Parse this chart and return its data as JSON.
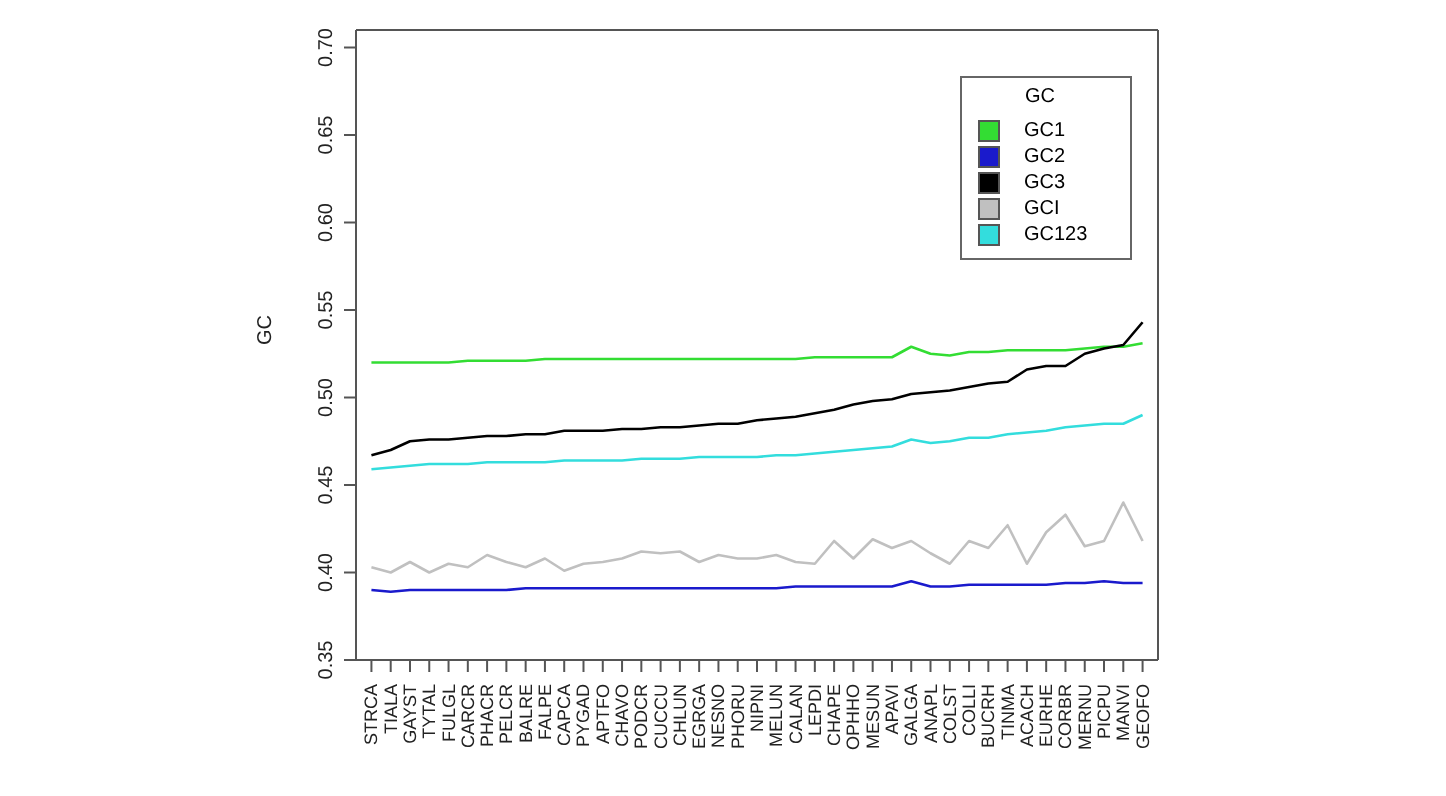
{
  "chart_data": {
    "type": "line",
    "ylabel": "GC",
    "legend_title": "GC",
    "legend": "top right",
    "grid": false,
    "marker": "none",
    "line_style": "solid",
    "categories": [
      "STRCA",
      "TIALA",
      "GAYST",
      "TYTAL",
      "FULGL",
      "CARCR",
      "PHACR",
      "PELCR",
      "BALRE",
      "FALPE",
      "CAPCA",
      "PYGAD",
      "APTFO",
      "CHAVO",
      "PODCR",
      "CUCCU",
      "CHLUN",
      "EGRGA",
      "NESNO",
      "PHORU",
      "NIPNI",
      "MELUN",
      "CALAN",
      "LEPDI",
      "CHAPE",
      "OPHHO",
      "MESUN",
      "APAVI",
      "GALGA",
      "ANAPL",
      "COLST",
      "COLLI",
      "BUCRH",
      "TINMA",
      "ACACH",
      "EURHE",
      "CORBR",
      "MERNU",
      "PICPU",
      "MANVI",
      "GEOFO"
    ],
    "ylim": [
      0.35,
      0.71
    ],
    "yticks": [
      0.35,
      {
        "value": 0.4,
        "label": "0.40"
      },
      0.45,
      {
        "value": 0.5,
        "label": "0.50"
      },
      0.55,
      {
        "value": 0.6,
        "label": "0.60"
      },
      0.65,
      {
        "value": 0.7,
        "label": "0.70"
      }
    ],
    "series": [
      {
        "name": "GC1",
        "color": "#33dd33",
        "values": [
          0.52,
          0.52,
          0.52,
          0.52,
          0.52,
          0.521,
          0.521,
          0.521,
          0.521,
          0.522,
          0.522,
          0.522,
          0.522,
          0.522,
          0.522,
          0.522,
          0.522,
          0.522,
          0.522,
          0.522,
          0.522,
          0.522,
          0.522,
          0.523,
          0.523,
          0.523,
          0.523,
          0.523,
          0.529,
          0.525,
          0.524,
          0.526,
          0.526,
          0.527,
          0.527,
          0.527,
          0.527,
          0.528,
          0.529,
          0.529,
          0.531
        ]
      },
      {
        "name": "GC2",
        "color": "#1a1acc",
        "values": [
          0.39,
          0.389,
          0.39,
          0.39,
          0.39,
          0.39,
          0.39,
          0.39,
          0.391,
          0.391,
          0.391,
          0.391,
          0.391,
          0.391,
          0.391,
          0.391,
          0.391,
          0.391,
          0.391,
          0.391,
          0.391,
          0.391,
          0.392,
          0.392,
          0.392,
          0.392,
          0.392,
          0.392,
          0.395,
          0.392,
          0.392,
          0.393,
          0.393,
          0.393,
          0.393,
          0.393,
          0.394,
          0.394,
          0.395,
          0.394,
          0.394
        ]
      },
      {
        "name": "GC3",
        "color": "#000000",
        "values": [
          0.467,
          0.47,
          0.475,
          0.476,
          0.476,
          0.477,
          0.478,
          0.478,
          0.479,
          0.479,
          0.481,
          0.481,
          0.481,
          0.482,
          0.482,
          0.483,
          0.483,
          0.484,
          0.485,
          0.485,
          0.487,
          0.488,
          0.489,
          0.491,
          0.493,
          0.496,
          0.498,
          0.499,
          0.502,
          0.503,
          0.504,
          0.506,
          0.508,
          0.509,
          0.516,
          0.518,
          0.518,
          0.525,
          0.528,
          0.53,
          0.543
        ]
      },
      {
        "name": "GCI",
        "color": "#c0c0c0",
        "values": [
          0.403,
          0.4,
          0.406,
          0.4,
          0.405,
          0.403,
          0.41,
          0.406,
          0.403,
          0.408,
          0.401,
          0.405,
          0.406,
          0.408,
          0.412,
          0.411,
          0.412,
          0.406,
          0.41,
          0.408,
          0.408,
          0.41,
          0.406,
          0.405,
          0.418,
          0.408,
          0.419,
          0.414,
          0.418,
          0.411,
          0.405,
          0.418,
          0.414,
          0.427,
          0.405,
          0.423,
          0.433,
          0.415,
          0.418,
          0.44,
          0.418
        ]
      },
      {
        "name": "GC123",
        "color": "#33dddd",
        "values": [
          0.459,
          0.46,
          0.461,
          0.462,
          0.462,
          0.462,
          0.463,
          0.463,
          0.463,
          0.463,
          0.464,
          0.464,
          0.464,
          0.464,
          0.465,
          0.465,
          0.465,
          0.466,
          0.466,
          0.466,
          0.466,
          0.467,
          0.467,
          0.468,
          0.469,
          0.47,
          0.471,
          0.472,
          0.476,
          0.474,
          0.475,
          0.477,
          0.477,
          0.479,
          0.48,
          0.481,
          0.483,
          0.484,
          0.485,
          0.485,
          0.49
        ]
      }
    ]
  }
}
